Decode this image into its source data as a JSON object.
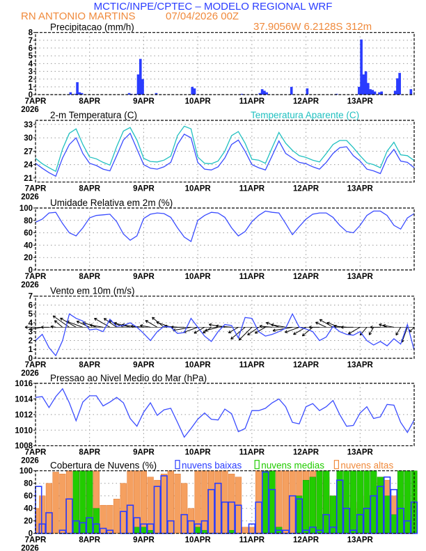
{
  "header": {
    "title": "MCTIC/INPE/CPTEC – MODELO REGIONAL WRF",
    "location": "RN ANTONIO MARTINS",
    "run": "07/04/2026 00Z",
    "coords": "37.9056W 6.2128S 312m"
  },
  "colors": {
    "title": "#2a3cff",
    "subtitle": "#f08a3c",
    "temperature": "#3a4cff",
    "apparent_temperature": "#20c0c0",
    "line": "#3a4cff",
    "precip": "#2a3cff",
    "wind_arrow": "#000000",
    "low_clouds": "#2a3cff",
    "mid_clouds": "#22cc00",
    "high_clouds": "#f5a060"
  },
  "x_axis": {
    "ticks": [
      "7APR",
      "8APR",
      "9APR",
      "10APR",
      "11APR",
      "12APR",
      "13APR"
    ],
    "year": "2026",
    "start": "2026-04-07 00Z",
    "end": "2026-04-14 00Z"
  },
  "chart_data": [
    {
      "id": "precip",
      "type": "bar",
      "title": "Precipitacao (mm/h)",
      "ylim": [
        0,
        8
      ],
      "yticks": [
        0,
        1,
        2,
        3,
        4,
        5,
        6,
        7,
        8
      ],
      "grid": true,
      "bars": [
        {
          "time": "2026-04-07 15Z",
          "value": 0.3
        },
        {
          "time": "2026-04-07 17Z",
          "value": 0.1
        },
        {
          "time": "2026-04-07 18Z",
          "value": 1.6
        },
        {
          "time": "2026-04-07 19Z",
          "value": 0.3
        },
        {
          "time": "2026-04-07 20Z",
          "value": 0.2
        },
        {
          "time": "2026-04-08 17Z",
          "value": 0.2
        },
        {
          "time": "2026-04-08 18Z",
          "value": 0.1
        },
        {
          "time": "2026-04-08 20Z",
          "value": 0.1
        },
        {
          "time": "2026-04-08 21Z",
          "value": 2.6
        },
        {
          "time": "2026-04-08 22Z",
          "value": 4.6
        },
        {
          "time": "2026-04-08 23Z",
          "value": 2.0
        },
        {
          "time": "2026-04-09 05Z",
          "value": 0.2
        },
        {
          "time": "2026-04-09 21Z",
          "value": 1.0
        },
        {
          "time": "2026-04-09 22Z",
          "value": 0.8
        },
        {
          "time": "2026-04-10 19Z",
          "value": 0.1
        },
        {
          "time": "2026-04-11 03Z",
          "value": 0.2
        },
        {
          "time": "2026-04-11 04Z",
          "value": 0.7
        },
        {
          "time": "2026-04-11 05Z",
          "value": 0.5
        },
        {
          "time": "2026-04-11 06Z",
          "value": 0.3
        },
        {
          "time": "2026-04-11 17Z",
          "value": 1.0
        },
        {
          "time": "2026-04-12 00Z",
          "value": 0.8
        },
        {
          "time": "2026-04-12 13Z",
          "value": 0.1
        },
        {
          "time": "2026-04-12 23Z",
          "value": 1.0
        },
        {
          "time": "2026-04-13 00Z",
          "value": 7.1
        },
        {
          "time": "2026-04-13 01Z",
          "value": 2.6
        },
        {
          "time": "2026-04-13 02Z",
          "value": 3.0
        },
        {
          "time": "2026-04-13 03Z",
          "value": 1.5
        },
        {
          "time": "2026-04-13 04Z",
          "value": 0.7
        },
        {
          "time": "2026-04-13 05Z",
          "value": 0.6
        },
        {
          "time": "2026-04-13 06Z",
          "value": 0.4
        },
        {
          "time": "2026-04-13 08Z",
          "value": 0.3
        },
        {
          "time": "2026-04-13 09Z",
          "value": 0.4
        },
        {
          "time": "2026-04-13 15Z",
          "value": 0.5
        },
        {
          "time": "2026-04-13 16Z",
          "value": 2.1
        },
        {
          "time": "2026-04-13 17Z",
          "value": 2.8
        },
        {
          "time": "2026-04-13 22Z",
          "value": 0.7
        }
      ]
    },
    {
      "id": "temp",
      "type": "line",
      "title": "2-m Temperatura (C)",
      "legend": "Temperatura Aparente (C)",
      "ylim": [
        20.1,
        33.9
      ],
      "yticks": [
        21,
        24,
        27,
        30,
        33
      ],
      "grid": true,
      "start": "2026-04-07 00Z",
      "step_hours": 3,
      "series": [
        {
          "name": "2-m Temperatura (C)",
          "color_key": "temperature",
          "values": [
            24.3,
            23.2,
            22.2,
            21.4,
            25.5,
            28.5,
            30.0,
            26.5,
            24.3,
            23.8,
            23.0,
            22.6,
            26.0,
            29.5,
            31.0,
            27.5,
            24.0,
            23.2,
            23.0,
            23.5,
            24.5,
            28.5,
            30.8,
            30.0,
            24.5,
            23.0,
            22.8,
            23.5,
            25.5,
            28.5,
            29.5,
            27.0,
            24.0,
            23.3,
            22.8,
            26.0,
            29.3,
            26.5,
            25.5,
            24.5,
            24.2,
            23.5,
            23.0,
            24.5,
            26.5,
            27.8,
            28.0,
            26.0,
            24.8,
            23.0,
            22.6,
            22.0,
            25.5,
            27.4,
            24.8,
            24.5,
            23.3
          ]
        },
        {
          "name": "Temperatura Aparente (C)",
          "color_key": "apparent_temperature",
          "values": [
            25.4,
            24.2,
            23.3,
            22.5,
            27.5,
            31.0,
            32.0,
            28.5,
            25.7,
            25.3,
            24.5,
            23.9,
            28.0,
            31.5,
            32.3,
            29.5,
            25.4,
            24.7,
            24.6,
            25.0,
            25.9,
            30.5,
            32.6,
            32.0,
            25.7,
            24.3,
            24.2,
            24.8,
            27.0,
            30.5,
            31.4,
            28.8,
            25.2,
            25.0,
            24.3,
            27.8,
            31.2,
            28.8,
            27.2,
            26.0,
            25.6,
            25.0,
            24.6,
            26.5,
            28.5,
            29.4,
            29.4,
            27.8,
            26.0,
            24.4,
            24.0,
            23.3,
            27.0,
            29.0,
            26.2,
            26.0,
            24.9
          ]
        }
      ]
    },
    {
      "id": "rh",
      "type": "line",
      "title": "Umidade Relativa em 2m (%)",
      "ylim": [
        0,
        100
      ],
      "yticks": [
        0,
        20,
        40,
        60,
        80,
        100
      ],
      "grid": true,
      "start": "2026-04-07 00Z",
      "step_hours": 3,
      "series": [
        {
          "color_key": "line",
          "values": [
            77,
            82,
            92,
            93,
            75,
            60,
            55,
            68,
            84,
            88,
            89,
            90,
            78,
            58,
            48,
            55,
            83,
            90,
            92,
            91,
            85,
            68,
            53,
            46,
            80,
            88,
            93,
            92,
            85,
            68,
            55,
            62,
            78,
            88,
            95,
            93,
            92,
            75,
            57,
            70,
            82,
            90,
            92,
            92,
            85,
            72,
            62,
            60,
            72,
            88,
            95,
            95,
            88,
            72,
            66,
            84,
            91
          ]
        }
      ]
    },
    {
      "id": "wind",
      "type": "line",
      "title": "Vento em 10m (m/s)",
      "ylim": [
        0,
        7
      ],
      "yticks": [
        0,
        1,
        2,
        3,
        4,
        5,
        6,
        7
      ],
      "grid": true,
      "start": "2026-04-07 00Z",
      "step_hours": 3,
      "series": [
        {
          "name": "speed",
          "color_key": "line",
          "values": [
            2.0,
            2.7,
            1.2,
            0.3,
            2.0,
            5.0,
            4.5,
            4.2,
            3.2,
            3.3,
            3.0,
            4.4,
            3.6,
            3.7,
            4.0,
            3.5,
            2.8,
            2.0,
            3.0,
            3.6,
            3.5,
            2.8,
            2.9,
            4.5,
            3.5,
            2.5,
            1.9,
            3.0,
            3.8,
            3.7,
            2.3,
            4.6,
            4.5,
            3.0,
            2.5,
            2.7,
            3.0,
            3.4,
            5.0,
            3.5,
            3.3,
            3.0,
            2.0,
            2.4,
            3.6,
            3.0,
            2.7,
            2.6,
            3.0,
            2.0,
            1.5,
            1.9,
            1.4,
            2.2,
            1.6,
            3.8,
            0.9
          ]
        }
      ],
      "direction_from_deg": [
        90,
        80,
        90,
        100,
        130,
        125,
        120,
        110,
        115,
        110,
        100,
        120,
        125,
        115,
        105,
        100,
        95,
        100,
        120,
        130,
        110,
        95,
        90,
        80,
        70,
        60,
        55,
        75,
        100,
        95,
        60,
        50,
        45,
        55,
        60,
        95,
        110,
        100,
        80,
        70,
        60,
        50,
        90,
        115,
        120,
        110,
        95,
        90,
        60,
        40,
        30,
        90,
        110,
        100,
        30,
        20,
        45
      ]
    },
    {
      "id": "pressure",
      "type": "line",
      "title": "Pressao ao Nivel Medio do Mar (hPa)",
      "ylim": [
        1008,
        1016
      ],
      "yticks": [
        1008,
        1010,
        1012,
        1014,
        1016
      ],
      "grid": true,
      "start": "2026-04-07 00Z",
      "step_hours": 3,
      "series": [
        {
          "color_key": "line",
          "values": [
            1014.2,
            1014.3,
            1012.9,
            1014.3,
            1015.3,
            1013.5,
            1011.2,
            1013.6,
            1014.4,
            1014.4,
            1013.1,
            1013.6,
            1014.2,
            1013.5,
            1011.5,
            1010.5,
            1012.3,
            1013.5,
            1011.9,
            1012.6,
            1012.8,
            1011.0,
            1009.1,
            1010.2,
            1011.4,
            1012.2,
            1011.4,
            1011.3,
            1012.7,
            1012.1,
            1009.8,
            1010.2,
            1012.5,
            1012.5,
            1012.8,
            1013.5,
            1014.0,
            1013.0,
            1011.0,
            1010.8,
            1013.0,
            1013.4,
            1012.5,
            1013.0,
            1013.8,
            1012.0,
            1010.5,
            1010.6,
            1012.2,
            1013.0,
            1011.5,
            1011.7,
            1013.3,
            1013.2,
            1011.0,
            1009.7,
            1011.3
          ]
        }
      ]
    },
    {
      "id": "clouds",
      "type": "bar",
      "title": "Cobertura de Nuvens (%)",
      "ylim": [
        0,
        100
      ],
      "yticks": [
        0,
        20,
        40,
        60,
        80,
        100
      ],
      "grid": true,
      "start": "2026-04-07 00Z",
      "step_hours": 3,
      "series": [
        {
          "name": "nuvens altas",
          "color_key": "high_clouds",
          "values": [
            40,
            60,
            80,
            98,
            95,
            100,
            100,
            100,
            100,
            100,
            45,
            45,
            55,
            80,
            100,
            100,
            100,
            90,
            85,
            95,
            100,
            95,
            80,
            40,
            100,
            100,
            100,
            100,
            100,
            95,
            90,
            10,
            10,
            100,
            100,
            100,
            100,
            100,
            100,
            100,
            100,
            100,
            100,
            90,
            60,
            80,
            70,
            50,
            40,
            60,
            70,
            90,
            85,
            60,
            40,
            30,
            20
          ]
        },
        {
          "name": "nuvens medias",
          "color_key": "mid_clouds",
          "values": [
            0,
            0,
            0,
            0,
            0,
            0,
            100,
            100,
            100,
            40,
            0,
            0,
            0,
            0,
            0,
            10,
            10,
            5,
            0,
            0,
            0,
            0,
            0,
            0,
            10,
            5,
            0,
            0,
            0,
            5,
            0,
            0,
            0,
            0,
            100,
            100,
            10,
            0,
            0,
            60,
            85,
            90,
            100,
            100,
            60,
            100,
            100,
            100,
            100,
            100,
            100,
            90,
            60,
            30,
            100,
            100,
            100
          ]
        },
        {
          "name": "nuvens baixas",
          "color_key": "low_clouds",
          "values": [
            75,
            15,
            33,
            0,
            5,
            55,
            20,
            17,
            25,
            15,
            8,
            5,
            0,
            35,
            45,
            25,
            15,
            15,
            75,
            92,
            20,
            0,
            30,
            20,
            15,
            20,
            70,
            80,
            50,
            50,
            45,
            0,
            15,
            50,
            98,
            70,
            5,
            5,
            60,
            55,
            5,
            10,
            5,
            30,
            10,
            85,
            40,
            5,
            30,
            40,
            60,
            75,
            90,
            70,
            40,
            20,
            50
          ]
        }
      ]
    }
  ]
}
